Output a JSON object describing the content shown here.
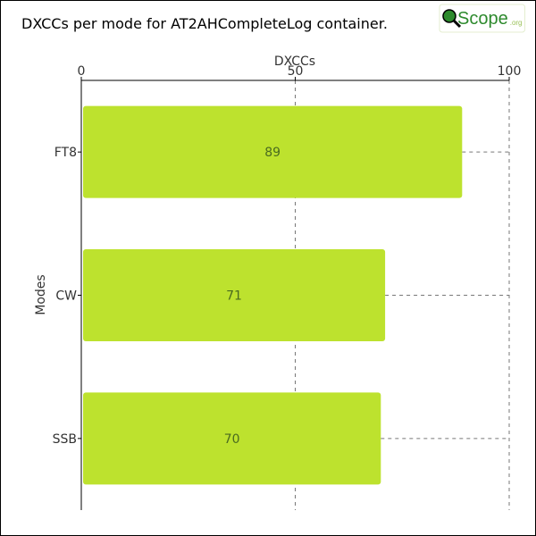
{
  "chart_data": {
    "type": "bar",
    "orientation": "horizontal",
    "title": "DXCCs per mode for AT2AHCompleteLog container.",
    "xlabel": "DXCCs",
    "ylabel": "Modes",
    "categories": [
      "FT8",
      "CW",
      "SSB"
    ],
    "values": [
      89,
      71,
      70
    ],
    "xlim": [
      0,
      100
    ],
    "xticks": [
      0,
      50,
      100
    ],
    "x_axis_position": "top",
    "grid": "vertical dashed",
    "bar_color": "#bde22e",
    "label_color": "#4a6b1f",
    "data_labels": true
  },
  "logo": {
    "text": "Scope",
    "suffix": ".org",
    "brand_color": "#2d8a2d"
  }
}
